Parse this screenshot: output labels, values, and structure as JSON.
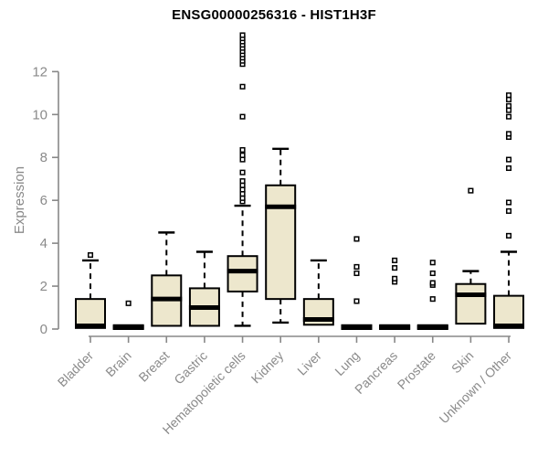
{
  "chart_data": {
    "type": "boxplot",
    "title": "ENSG00000256316 - HIST1H3F",
    "ylabel": "Expression",
    "xlabel": "",
    "ylim": [
      0,
      13.8
    ],
    "yticks": [
      0,
      2,
      4,
      6,
      8,
      10,
      12
    ],
    "grid": false,
    "legend": "none",
    "categories": [
      "Bladder",
      "Brain",
      "Breast",
      "Gastric",
      "Hematopoietic cells",
      "Kidney",
      "Liver",
      "Lung",
      "Pancreas",
      "Prostate",
      "Skin",
      "Unknown / Other"
    ],
    "boxes": [
      {
        "category": "Bladder",
        "whisker_low": 0.05,
        "q1": 0.05,
        "median": 0.15,
        "q3": 1.4,
        "whisker_high": 3.2,
        "outliers": [
          3.45
        ]
      },
      {
        "category": "Brain",
        "whisker_low": 0,
        "q1": 0,
        "median": 0.08,
        "q3": 0.18,
        "whisker_high": 0.18,
        "outliers": [
          1.2
        ]
      },
      {
        "category": "Breast",
        "whisker_low": 0.15,
        "q1": 0.15,
        "median": 1.4,
        "q3": 2.5,
        "whisker_high": 4.5,
        "outliers": []
      },
      {
        "category": "Gastric",
        "whisker_low": 0.15,
        "q1": 0.15,
        "median": 1.0,
        "q3": 1.9,
        "whisker_high": 3.6,
        "outliers": []
      },
      {
        "category": "Hematopoietic cells",
        "whisker_low": 0.15,
        "q1": 1.75,
        "median": 2.7,
        "q3": 3.4,
        "whisker_high": 5.75,
        "outliers": [
          5.95,
          6.1,
          6.3,
          6.5,
          6.7,
          6.9,
          7.3,
          7.9,
          8.1,
          8.35,
          9.9,
          11.3,
          12.35,
          12.5,
          12.65,
          12.8,
          12.95,
          13.1,
          13.25,
          13.4,
          13.55,
          13.7
        ]
      },
      {
        "category": "Kidney",
        "whisker_low": 0.3,
        "q1": 1.4,
        "median": 5.7,
        "q3": 6.7,
        "whisker_high": 8.4,
        "outliers": []
      },
      {
        "category": "Liver",
        "whisker_low": 0.2,
        "q1": 0.2,
        "median": 0.45,
        "q3": 1.4,
        "whisker_high": 3.2,
        "outliers": []
      },
      {
        "category": "Lung",
        "whisker_low": 0,
        "q1": 0,
        "median": 0.08,
        "q3": 0.18,
        "whisker_high": 0.18,
        "outliers": [
          1.3,
          2.6,
          2.9,
          4.2
        ]
      },
      {
        "category": "Pancreas",
        "whisker_low": 0,
        "q1": 0,
        "median": 0.08,
        "q3": 0.18,
        "whisker_high": 0.18,
        "outliers": [
          2.2,
          2.35,
          2.85,
          3.2
        ]
      },
      {
        "category": "Prostate",
        "whisker_low": 0,
        "q1": 0,
        "median": 0.08,
        "q3": 0.18,
        "whisker_high": 0.18,
        "outliers": [
          1.4,
          2.05,
          2.15,
          2.6,
          3.1
        ]
      },
      {
        "category": "Skin",
        "whisker_low": 0.25,
        "q1": 0.25,
        "median": 1.6,
        "q3": 2.1,
        "whisker_high": 2.7,
        "outliers": [
          6.45
        ]
      },
      {
        "category": "Unknown / Other",
        "whisker_low": 0.05,
        "q1": 0.05,
        "median": 0.15,
        "q3": 1.55,
        "whisker_high": 3.6,
        "outliers": [
          4.35,
          5.5,
          5.9,
          7.5,
          7.9,
          8.95,
          9.1,
          9.9,
          10.2,
          10.4,
          10.7,
          10.9
        ]
      }
    ],
    "colors": {
      "box_fill": "#ede7cd",
      "box_stroke": "#000000",
      "median": "#000000",
      "outlier_fill": "#ffffff",
      "axis": "#888888",
      "tick_text": "#8a8a8a",
      "title_text": "#000000",
      "background": "#ffffff"
    }
  }
}
